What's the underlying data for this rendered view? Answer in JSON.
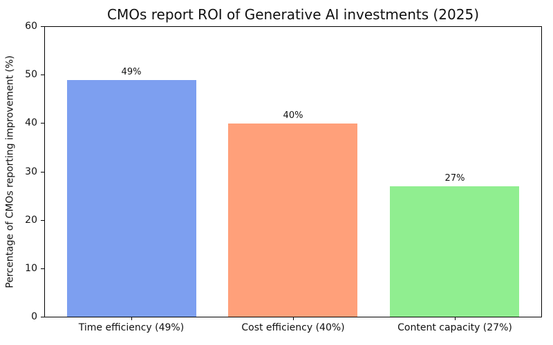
{
  "chart_data": {
    "type": "bar",
    "title": "CMOs report ROI of Generative AI investments (2025)",
    "xlabel": "",
    "ylabel": "Percentage of CMOs reporting improvement (%)",
    "categories": [
      "Time efficiency (49%)",
      "Cost efficiency (40%)",
      "Content capacity (27%)"
    ],
    "values": [
      49,
      40,
      27
    ],
    "bar_labels": [
      "49%",
      "40%",
      "27%"
    ],
    "bar_colors": [
      "#7d9ff0",
      "#ffa07a",
      "#90ee90"
    ],
    "ylim": [
      0,
      60
    ],
    "yticks": [
      0,
      10,
      20,
      30,
      40,
      50,
      60
    ],
    "grid": false,
    "legend": null,
    "spine_color": "#000000",
    "background_color": "#ffffff"
  }
}
